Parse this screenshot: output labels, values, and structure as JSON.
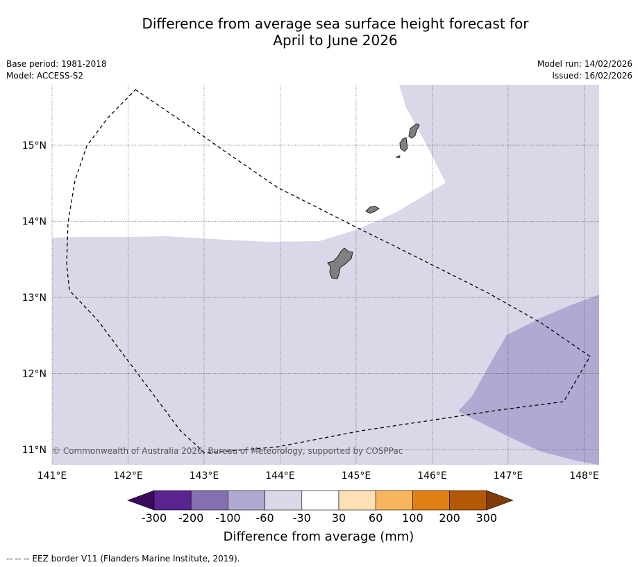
{
  "title": {
    "line1": "Difference from average sea surface height forecast for",
    "line2": "April to June 2026"
  },
  "meta": {
    "base_period": "Base period: 1981-2018",
    "model": "Model: ACCESS-S2",
    "model_run": "Model run: 14/02/2026",
    "issued": "Issued: 16/02/2026"
  },
  "map": {
    "x_ticks": [
      "141°E",
      "142°E",
      "143°E",
      "144°E",
      "145°E",
      "146°E",
      "147°E",
      "148°E"
    ],
    "y_ticks": [
      "15°N",
      "14°N",
      "13°N",
      "12°N",
      "11°N"
    ],
    "copyright": "© Commonwealth of Australia 2026, Bureau of Meteorology, supported by COSPPac",
    "features": [
      "shading -60 to -30 mm",
      "shading -100 to -60 mm",
      "EEZ border (dashed)",
      "islands"
    ]
  },
  "colorbar": {
    "colors": [
      "#3a0a5e",
      "#5a2590",
      "#8470b0",
      "#b0aad2",
      "#d8d8e8",
      "#ffffff",
      "#fde0b4",
      "#f9b55e",
      "#e07f14",
      "#b35806",
      "#7f3b08"
    ],
    "labels": [
      "-300",
      "-200",
      "-100",
      "-60",
      "-30",
      "30",
      "60",
      "100",
      "200",
      "300"
    ],
    "title": "Difference from average (mm)"
  },
  "footnote": "--  --  -- EEZ border V11 (Flanders Marine Institute, 2019)."
}
